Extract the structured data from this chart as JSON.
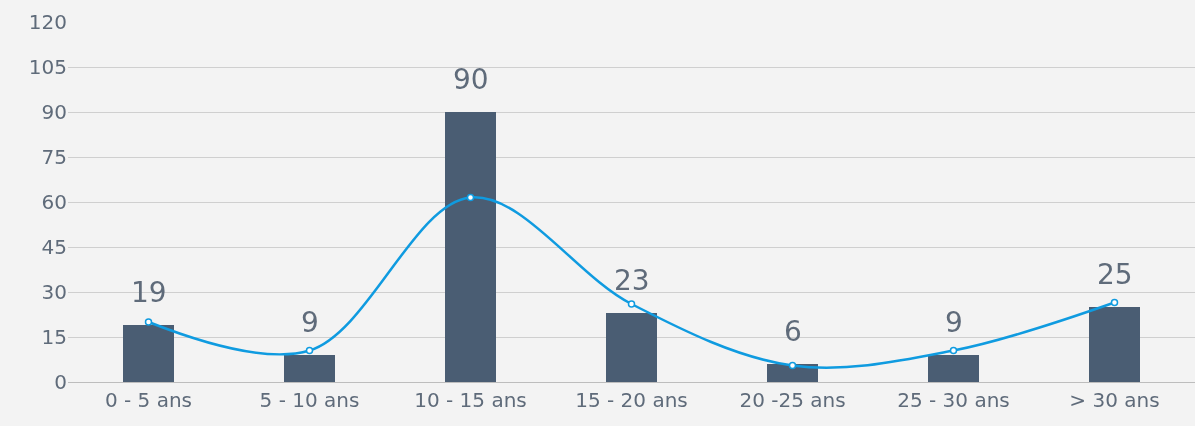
{
  "chart_data": {
    "type": "bar",
    "categories": [
      "0 - 5 ans",
      "5 - 10 ans",
      "10 - 15 ans",
      "15 - 20 ans",
      "20 -25 ans",
      "25 - 30 ans",
      "> 30 ans"
    ],
    "series": [
      {
        "color": "#4a5d73",
        "values": [
          19,
          9,
          90,
          23,
          6,
          9,
          25
        ],
        "value_labels": [
          "19",
          "9",
          "90",
          "23",
          "6",
          "9",
          "25"
        ]
      },
      {
        "type": "line",
        "color": "#0f9be0",
        "values": [
          20,
          10.5,
          61.5,
          26,
          5.5,
          10.5,
          26.5
        ],
        "marker": "circle",
        "line_style": "solid"
      }
    ],
    "ylim": [
      0,
      120
    ],
    "yticks": [
      0,
      15,
      30,
      45,
      60,
      75,
      90,
      105,
      120
    ],
    "grid": "y",
    "legend": false
  }
}
